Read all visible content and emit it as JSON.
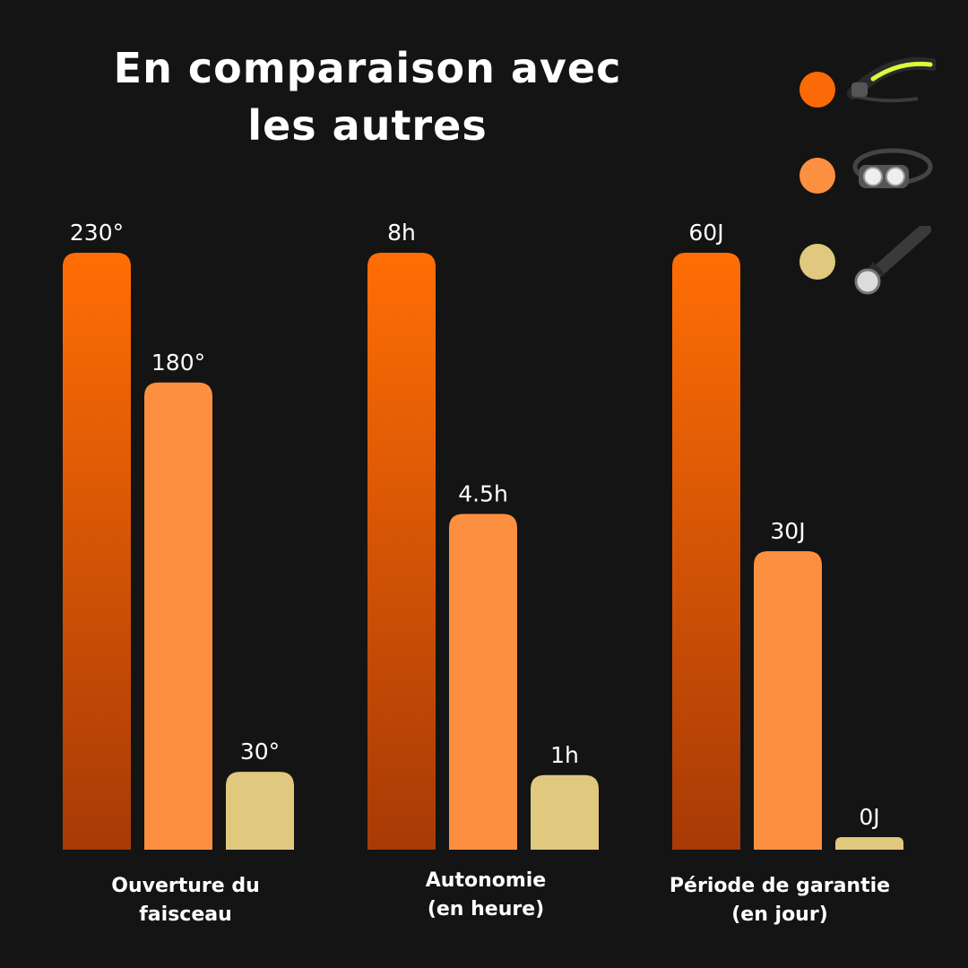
{
  "title_lines": [
    "En comparaison avec",
    "les autres"
  ],
  "legend": [
    {
      "icon": "led-headband-headlamp-icon",
      "color": "#fb6a06"
    },
    {
      "icon": "classic-headlamp-icon",
      "color": "#fd9040"
    },
    {
      "icon": "flashlight-icon",
      "color": "#e0c87e"
    }
  ],
  "chart_data": {
    "type": "bar",
    "groups": [
      {
        "label": "Ouverture du\nfaisceau",
        "max": 230,
        "bars": [
          {
            "value": 230,
            "label": "230°"
          },
          {
            "value": 180,
            "label": "180°"
          },
          {
            "value": 30,
            "label": "30°"
          }
        ]
      },
      {
        "label": "Autonomie\n(en heure)",
        "max": 8,
        "bars": [
          {
            "value": 8,
            "label": "8h"
          },
          {
            "value": 4.5,
            "label": "4.5h"
          },
          {
            "value": 1,
            "label": "1h"
          }
        ]
      },
      {
        "label": "Période de garantie\n(en jour)",
        "max": 60,
        "bars": [
          {
            "value": 60,
            "label": "60J"
          },
          {
            "value": 30,
            "label": "30J"
          },
          {
            "value": 0,
            "label": "0J"
          }
        ]
      }
    ]
  }
}
